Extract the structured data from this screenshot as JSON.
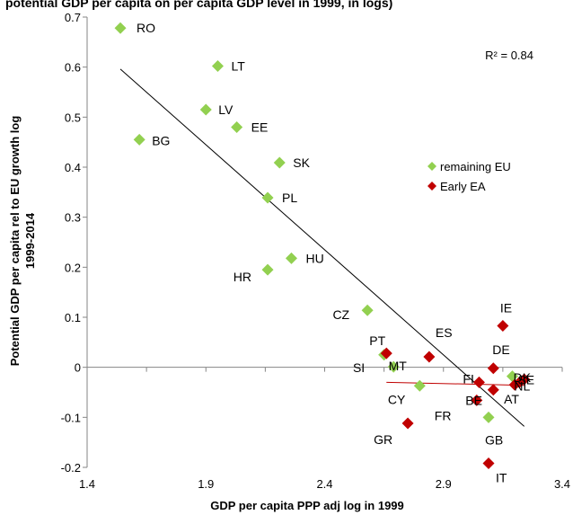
{
  "chart_data": {
    "type": "scatter",
    "title": "potential GDP per capita on per capita GDP level in 1999, in logs)",
    "xlabel": "GDP per capita PPP adj log in 1999",
    "ylabel": "Potential GDP per capita rel to EU growth log 1999-2014",
    "xlim": [
      1.4,
      3.4
    ],
    "ylim": [
      -0.2,
      0.7
    ],
    "xticks": [
      "1.4",
      "1.9",
      "2.4",
      "2.9",
      "3.4"
    ],
    "yticks": [
      "-0.2",
      "-0.1",
      "0",
      "0.1",
      "0.2",
      "0.3",
      "0.4",
      "0.5",
      "0.6",
      "0.7"
    ],
    "r_squared_label": "R² = 0.84",
    "legend_position": "right",
    "series": [
      {
        "name": "remaining EU",
        "color": "#92d050",
        "points": [
          {
            "label": "RO",
            "x": 1.54,
            "y": 0.678
          },
          {
            "label": "LT",
            "x": 1.95,
            "y": 0.602
          },
          {
            "label": "LV",
            "x": 1.9,
            "y": 0.515
          },
          {
            "label": "EE",
            "x": 2.03,
            "y": 0.48
          },
          {
            "label": "BG",
            "x": 1.62,
            "y": 0.455
          },
          {
            "label": "SK",
            "x": 2.21,
            "y": 0.409
          },
          {
            "label": "PL",
            "x": 2.16,
            "y": 0.339
          },
          {
            "label": "HU",
            "x": 2.26,
            "y": 0.218
          },
          {
            "label": "HR",
            "x": 2.16,
            "y": 0.195
          },
          {
            "label": "CZ",
            "x": 2.58,
            "y": 0.114
          },
          {
            "label": "SI",
            "x": 2.69,
            "y": 0.001
          },
          {
            "label": "MT",
            "x": 2.65,
            "y": 0.025
          },
          {
            "label": "CY",
            "x": 2.8,
            "y": -0.037
          },
          {
            "label": "GB",
            "x": 3.09,
            "y": -0.1
          },
          {
            "label": "SE",
            "x": 3.19,
            "y": -0.018
          }
        ]
      },
      {
        "name": "Early EA",
        "color": "#c00000",
        "points": [
          {
            "label": "IE",
            "x": 3.15,
            "y": 0.083
          },
          {
            "label": "PT",
            "x": 2.66,
            "y": 0.028
          },
          {
            "label": "ES",
            "x": 2.84,
            "y": 0.021
          },
          {
            "label": "DE",
            "x": 3.11,
            "y": -0.002
          },
          {
            "label": "FI",
            "x": 3.05,
            "y": -0.03
          },
          {
            "label": "AT",
            "x": 3.2,
            "y": -0.035
          },
          {
            "label": "BE",
            "x": 3.11,
            "y": -0.045
          },
          {
            "label": "FR",
            "x": 3.04,
            "y": -0.066
          },
          {
            "label": "DK",
            "x": 3.24,
            "y": -0.024
          },
          {
            "label": "NL",
            "x": 3.22,
            "y": -0.03
          },
          {
            "label": "GR",
            "x": 2.75,
            "y": -0.112
          },
          {
            "label": "IT",
            "x": 3.09,
            "y": -0.192
          }
        ]
      }
    ],
    "trendlines": [
      {
        "series": "remaining EU",
        "color": "#000000",
        "from": [
          1.54,
          0.596
        ],
        "to": [
          3.24,
          -0.118
        ]
      },
      {
        "series": "Early EA",
        "color": "#c00000",
        "from": [
          2.66,
          -0.03
        ],
        "to": [
          3.24,
          -0.036
        ]
      }
    ]
  }
}
